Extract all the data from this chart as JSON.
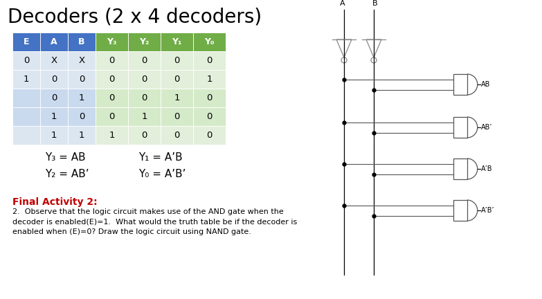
{
  "title": "Decoders (2 x 4 decoders)",
  "title_fontsize": 20,
  "table": {
    "col_headers": [
      "E",
      "A",
      "B",
      "Y₃",
      "Y₂",
      "Y₁",
      "Y₀"
    ],
    "rows": [
      [
        "0",
        "X",
        "X",
        "0",
        "0",
        "0",
        "0"
      ],
      [
        "1",
        "0",
        "0",
        "0",
        "0",
        "0",
        "1"
      ],
      [
        "",
        "0",
        "1",
        "0",
        "0",
        "1",
        "0"
      ],
      [
        "",
        "1",
        "0",
        "0",
        "1",
        "0",
        "0"
      ],
      [
        "",
        "1",
        "1",
        "1",
        "0",
        "0",
        "0"
      ]
    ],
    "header_bg_input": "#4472C4",
    "header_bg_output": "#70AD47",
    "row_bg_input_light": "#DCE6F1",
    "row_bg_input_mid": "#C9D9EE",
    "row_bg_output_light": "#E2EFDA",
    "row_bg_output_mid": "#D5EAC8"
  },
  "equations": [
    [
      "Y₃ = AB",
      "Y₁ = A’B"
    ],
    [
      "Y₂ = AB’",
      "Y₀ = A’B’"
    ]
  ],
  "final_activity_title": "Final Activity 2:",
  "final_activity_text": "2.  Observe that the logic circuit makes use of the AND gate when the\ndecoder is enabled(E)=1.  What would the truth table be if the decoder is\nenabled when (E)=0? Draw the logic circuit using NAND gate.",
  "bg_color": "#FFFFFF",
  "circuit": {
    "A_label": "A",
    "B_label": "B",
    "gate_labels": [
      "AB",
      "AB’",
      "A’B",
      "A’B’"
    ]
  }
}
